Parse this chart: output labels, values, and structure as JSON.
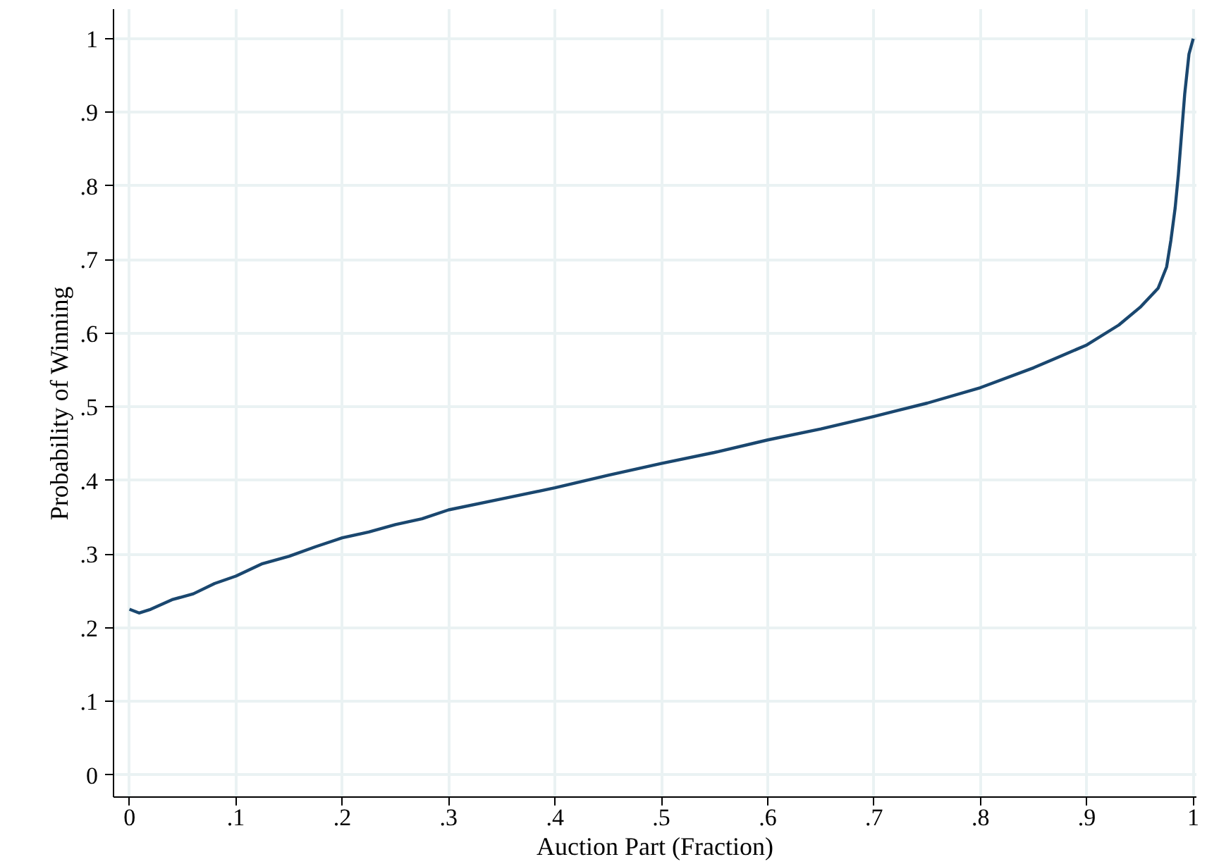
{
  "chart_data": {
    "type": "line",
    "xlabel": "Auction Part (Fraction)",
    "ylabel": "Probability of Winning",
    "xlim": [
      -0.015,
      1.003
    ],
    "ylim": [
      -0.03,
      1.04
    ],
    "xticks": [
      0,
      {
        "value": 0.1,
        "label": ".1"
      },
      {
        "value": 0.2,
        "label": ".2"
      },
      {
        "value": 0.3,
        "label": ".3"
      },
      {
        "value": 0.4,
        "label": ".4"
      },
      {
        "value": 0.5,
        "label": ".5"
      },
      {
        "value": 0.6,
        "label": ".6"
      },
      {
        "value": 0.7,
        "label": ".7"
      },
      {
        "value": 0.8,
        "label": ".8"
      },
      {
        "value": 0.9,
        "label": ".9"
      },
      1
    ],
    "yticks": [
      0,
      {
        "value": 0.1,
        "label": ".1"
      },
      {
        "value": 0.2,
        "label": ".2"
      },
      {
        "value": 0.3,
        "label": ".3"
      },
      {
        "value": 0.4,
        "label": ".4"
      },
      {
        "value": 0.5,
        "label": ".5"
      },
      {
        "value": 0.6,
        "label": ".6"
      },
      {
        "value": 0.7,
        "label": ".7"
      },
      {
        "value": 0.8,
        "label": ".8"
      },
      {
        "value": 0.9,
        "label": ".9"
      },
      1
    ],
    "grid": true,
    "marker": "none",
    "line_style": "solid",
    "series": [
      {
        "color": "#1a476f",
        "x": [
          0,
          0.009,
          0.02,
          0.04,
          0.06,
          0.08,
          0.1,
          0.125,
          0.15,
          0.175,
          0.2,
          0.225,
          0.25,
          0.275,
          0.3,
          0.35,
          0.4,
          0.45,
          0.5,
          0.55,
          0.6,
          0.65,
          0.7,
          0.75,
          0.8,
          0.85,
          0.9,
          0.93,
          0.95,
          0.967,
          0.975,
          0.979,
          0.983,
          0.986,
          0.989,
          0.992,
          0.996,
          1.0
        ],
        "values": [
          0.225,
          0.22,
          0.225,
          0.238,
          0.246,
          0.26,
          0.27,
          0.287,
          0.297,
          0.31,
          0.322,
          0.33,
          0.34,
          0.348,
          0.36,
          0.375,
          0.39,
          0.407,
          0.423,
          0.438,
          0.455,
          0.47,
          0.487,
          0.505,
          0.526,
          0.553,
          0.584,
          0.611,
          0.635,
          0.661,
          0.69,
          0.726,
          0.77,
          0.815,
          0.87,
          0.925,
          0.979,
          1.0
        ]
      }
    ]
  }
}
